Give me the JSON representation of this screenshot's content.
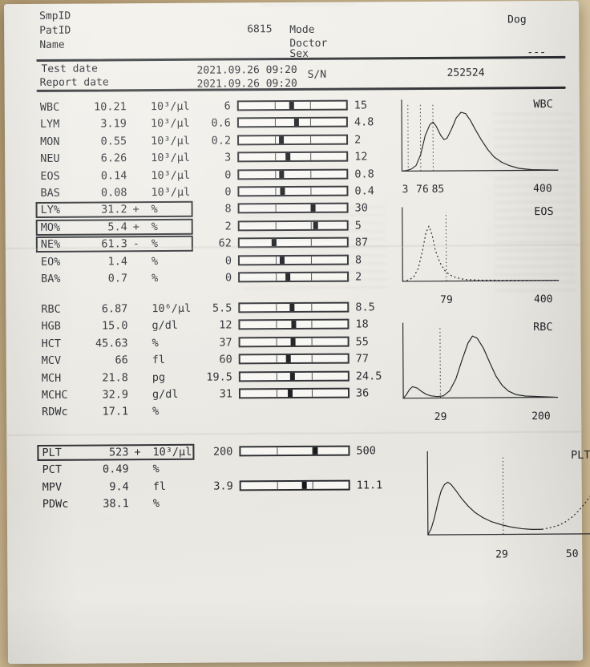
{
  "header": {
    "smpid_label": "SmpID",
    "patid_label": "PatID",
    "name_label": "Name",
    "patid_value": "6815",
    "mode_label": "Mode",
    "doctor_label": "Doctor",
    "sex_label": "Sex",
    "species_value": "Dog",
    "sex_value": "---",
    "test_date_label": "Test date",
    "test_date_value": "2021.09.26 09:20",
    "report_date_label": "Report date",
    "report_date_value": "2021.09.26 09:20",
    "sn_label": "S/N",
    "sn_value": "252524"
  },
  "results": {
    "wbc_group": [
      {
        "name": "WBC",
        "value": "10.21",
        "flag": "",
        "unit": "10³/µl",
        "boxed": false,
        "bar": {
          "low": "6",
          "high": "15"
        }
      },
      {
        "name": "LYM",
        "value": "3.19",
        "flag": "",
        "unit": "10³/µl",
        "boxed": false,
        "bar": {
          "low": "0.6",
          "high": "4.8"
        }
      },
      {
        "name": "MON",
        "value": "0.55",
        "flag": "",
        "unit": "10³/µl",
        "boxed": false,
        "bar": {
          "low": "0.2",
          "high": "2"
        }
      },
      {
        "name": "NEU",
        "value": "6.26",
        "flag": "",
        "unit": "10³/µl",
        "boxed": false,
        "bar": {
          "low": "3",
          "high": "12"
        }
      },
      {
        "name": "EOS",
        "value": "0.14",
        "flag": "",
        "unit": "10³/µl",
        "boxed": false,
        "bar": {
          "low": "0",
          "high": "0.8"
        }
      },
      {
        "name": "BAS",
        "value": "0.08",
        "flag": "",
        "unit": "10³/µl",
        "boxed": false,
        "bar": {
          "low": "0",
          "high": "0.4"
        }
      },
      {
        "name": "LY%",
        "value": "31.2",
        "flag": "+",
        "unit": "%",
        "boxed": true,
        "bar": {
          "low": "8",
          "high": "30"
        }
      },
      {
        "name": "MO%",
        "value": "5.4",
        "flag": "+",
        "unit": "%",
        "boxed": true,
        "bar": {
          "low": "2",
          "high": "5"
        }
      },
      {
        "name": "NE%",
        "value": "61.3",
        "flag": "-",
        "unit": "%",
        "boxed": true,
        "bar": {
          "low": "62",
          "high": "87"
        }
      },
      {
        "name": "EO%",
        "value": "1.4",
        "flag": "",
        "unit": "%",
        "boxed": false,
        "bar": {
          "low": "0",
          "high": "8"
        }
      },
      {
        "name": "BA%",
        "value": "0.7",
        "flag": "",
        "unit": "%",
        "boxed": false,
        "bar": {
          "low": "0",
          "high": "2"
        }
      }
    ],
    "rbc_group": [
      {
        "name": "RBC",
        "value": "6.87",
        "flag": "",
        "unit": "10⁶/µl",
        "boxed": false,
        "bar": {
          "low": "5.5",
          "high": "8.5"
        }
      },
      {
        "name": "HGB",
        "value": "15.0",
        "flag": "",
        "unit": "g/dl",
        "boxed": false,
        "bar": {
          "low": "12",
          "high": "18"
        }
      },
      {
        "name": "HCT",
        "value": "45.63",
        "flag": "",
        "unit": "%",
        "boxed": false,
        "bar": {
          "low": "37",
          "high": "55"
        }
      },
      {
        "name": "MCV",
        "value": "66",
        "flag": "",
        "unit": "fl",
        "boxed": false,
        "bar": {
          "low": "60",
          "high": "77"
        }
      },
      {
        "name": "MCH",
        "value": "21.8",
        "flag": "",
        "unit": "pg",
        "boxed": false,
        "bar": {
          "low": "19.5",
          "high": "24.5"
        }
      },
      {
        "name": "MCHC",
        "value": "32.9",
        "flag": "",
        "unit": "g/dl",
        "boxed": false,
        "bar": {
          "low": "31",
          "high": "36"
        }
      },
      {
        "name": "RDWc",
        "value": "17.1",
        "flag": "",
        "unit": "%",
        "boxed": false,
        "bar": null
      }
    ],
    "plt_group": [
      {
        "name": "PLT",
        "value": "523",
        "flag": "+",
        "unit": "10³/µl",
        "boxed": true,
        "bar": {
          "low": "200",
          "high": "500"
        }
      },
      {
        "name": "PCT",
        "value": "0.49",
        "flag": "",
        "unit": "%",
        "boxed": false,
        "bar": null
      },
      {
        "name": "MPV",
        "value": "9.4",
        "flag": "",
        "unit": "fl",
        "boxed": false,
        "bar": {
          "low": "3.9",
          "high": "11.1"
        }
      },
      {
        "name": "PDWc",
        "value": "38.1",
        "flag": "",
        "unit": "%",
        "boxed": false,
        "bar": null
      }
    ]
  },
  "histograms": [
    {
      "label": "WBC",
      "x_labels": [
        {
          "t": "3",
          "p": 2
        },
        {
          "t": "76",
          "p": 13
        },
        {
          "t": "85",
          "p": 23
        },
        {
          "t": "400",
          "p": 90
        }
      ],
      "dotted_lines": [
        4,
        12,
        20
      ],
      "segments": [
        {
          "style": "solid",
          "points": [
            [
              0,
              0
            ],
            [
              3,
              1
            ],
            [
              6,
              3
            ],
            [
              9,
              8
            ],
            [
              12,
              24
            ],
            [
              15,
              52
            ],
            [
              18,
              68
            ],
            [
              20,
              72
            ],
            [
              22,
              66
            ],
            [
              25,
              52
            ],
            [
              27,
              46
            ],
            [
              29,
              48
            ],
            [
              32,
              62
            ],
            [
              35,
              78
            ],
            [
              38,
              86
            ],
            [
              41,
              84
            ],
            [
              44,
              74
            ],
            [
              47,
              61
            ],
            [
              51,
              45
            ],
            [
              55,
              31
            ],
            [
              59,
              20
            ],
            [
              64,
              12
            ],
            [
              69,
              7
            ],
            [
              75,
              3
            ],
            [
              83,
              1
            ],
            [
              100,
              0
            ]
          ]
        }
      ]
    },
    {
      "label": "EOS",
      "x_labels": [
        {
          "t": "79",
          "p": 28
        },
        {
          "t": "400",
          "p": 90
        }
      ],
      "dotted_lines": [
        28
      ],
      "segments": [
        {
          "style": "dotted",
          "points": [
            [
              0,
              0
            ],
            [
              4,
              2
            ],
            [
              7,
              6
            ],
            [
              10,
              18
            ],
            [
              13,
              45
            ],
            [
              15,
              68
            ],
            [
              17,
              78
            ],
            [
              19,
              66
            ],
            [
              21,
              44
            ],
            [
              24,
              26
            ],
            [
              27,
              15
            ],
            [
              30,
              9
            ],
            [
              34,
              5
            ],
            [
              40,
              2
            ],
            [
              50,
              1
            ],
            [
              100,
              0
            ]
          ]
        }
      ]
    },
    {
      "label": "RBC",
      "x_labels": [
        {
          "t": "29",
          "p": 24
        },
        {
          "t": "200",
          "p": 89
        }
      ],
      "dotted_lines": [
        24
      ],
      "segments": [
        {
          "style": "solid",
          "points": [
            [
              0,
              0
            ],
            [
              2,
              5
            ],
            [
              4,
              12
            ],
            [
              6,
              16
            ],
            [
              9,
              14
            ],
            [
              12,
              9
            ],
            [
              15,
              5
            ],
            [
              18,
              3
            ],
            [
              22,
              2
            ],
            [
              26,
              3
            ],
            [
              30,
              10
            ],
            [
              34,
              26
            ],
            [
              38,
              52
            ],
            [
              42,
              76
            ],
            [
              45,
              86
            ],
            [
              48,
              83
            ],
            [
              52,
              69
            ],
            [
              56,
              49
            ],
            [
              60,
              30
            ],
            [
              64,
              17
            ],
            [
              68,
              9
            ],
            [
              73,
              4
            ],
            [
              79,
              2
            ],
            [
              100,
              0
            ]
          ]
        }
      ]
    },
    {
      "label": "PLT",
      "x_labels": [
        {
          "t": "29",
          "p": 44
        },
        {
          "t": "50",
          "p": 86
        }
      ],
      "dotted_lines": [
        45
      ],
      "segments": [
        {
          "style": "solid",
          "points": [
            [
              0,
              0
            ],
            [
              2,
              8
            ],
            [
              4,
              22
            ],
            [
              6,
              40
            ],
            [
              8,
              55
            ],
            [
              10,
              63
            ],
            [
              12,
              66
            ],
            [
              14,
              63
            ],
            [
              17,
              55
            ],
            [
              20,
              46
            ],
            [
              24,
              36
            ],
            [
              28,
              28
            ],
            [
              33,
              21
            ],
            [
              38,
              16
            ],
            [
              44,
              12
            ],
            [
              50,
              9
            ],
            [
              56,
              7
            ],
            [
              62,
              6
            ],
            [
              68,
              6
            ]
          ]
        },
        {
          "style": "dotted",
          "points": [
            [
              68,
              6
            ],
            [
              73,
              8
            ],
            [
              78,
              11
            ],
            [
              82,
              15
            ],
            [
              86,
              21
            ],
            [
              90,
              29
            ],
            [
              94,
              39
            ],
            [
              98,
              50
            ],
            [
              100,
              56
            ]
          ]
        }
      ]
    }
  ]
}
